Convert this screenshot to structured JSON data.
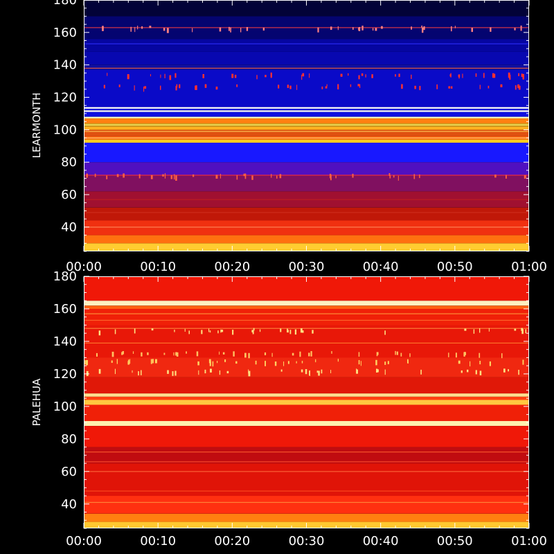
{
  "chart_data": [
    {
      "type": "heatmap",
      "title": "",
      "ylabel": "LEARMONTH",
      "xlabel": "",
      "xlim": [
        "00:00",
        "01:00"
      ],
      "ylim": [
        25,
        180
      ],
      "x_ticks": [
        "00:00",
        "00:10",
        "00:20",
        "00:30",
        "00:40",
        "00:50",
        "01:00"
      ],
      "y_ticks": [
        40,
        60,
        80,
        100,
        120,
        140,
        160,
        180
      ],
      "grid": false,
      "colormap": [
        "#000000",
        "#000080",
        "#0000ff",
        "#800000",
        "#ff0000",
        "#ffa000",
        "#ffff80",
        "#ffffff"
      ],
      "bands": [
        {
          "y0": 25,
          "y1": 30,
          "color": "#ffcc30"
        },
        {
          "y0": 30,
          "y1": 35,
          "color": "#ff7010"
        },
        {
          "y0": 35,
          "y1": 44,
          "color": "#f03010"
        },
        {
          "y0": 44,
          "y1": 52,
          "color": "#c01808"
        },
        {
          "y0": 52,
          "y1": 62,
          "color": "#a01030"
        },
        {
          "y0": 62,
          "y1": 72,
          "color": "#801060"
        },
        {
          "y0": 72,
          "y1": 80,
          "color": "#5010c0"
        },
        {
          "y0": 80,
          "y1": 92,
          "color": "#1818ff"
        },
        {
          "y0": 92,
          "y1": 94,
          "color": "#ffcc20"
        },
        {
          "y0": 94,
          "y1": 96,
          "color": "#ff6010"
        },
        {
          "y0": 96,
          "y1": 100,
          "color": "#e05010"
        },
        {
          "y0": 100,
          "y1": 102,
          "color": "#ffb020"
        },
        {
          "y0": 102,
          "y1": 104,
          "color": "#d0a020"
        },
        {
          "y0": 104,
          "y1": 107,
          "color": "#ff8010"
        },
        {
          "y0": 107,
          "y1": 108,
          "color": "#ffffc0"
        },
        {
          "y0": 108,
          "y1": 111,
          "color": "#1010e0"
        },
        {
          "y0": 111,
          "y1": 112,
          "color": "#ffffff"
        },
        {
          "y0": 112,
          "y1": 113,
          "color": "#1010e0"
        },
        {
          "y0": 113,
          "y1": 114,
          "color": "#ffffff"
        },
        {
          "y0": 114,
          "y1": 137,
          "color": "#0a0ac8"
        },
        {
          "y0": 137,
          "y1": 140,
          "color": "#1010a0"
        },
        {
          "y0": 140,
          "y1": 148,
          "color": "#0808b0"
        },
        {
          "y0": 148,
          "y1": 156,
          "color": "#0606a0"
        },
        {
          "y0": 156,
          "y1": 170,
          "color": "#040470"
        },
        {
          "y0": 170,
          "y1": 180,
          "color": "#020238"
        }
      ],
      "lines": [
        {
          "y": 40,
          "color": "#ff9060"
        },
        {
          "y": 49,
          "color": "#d03020"
        },
        {
          "y": 57,
          "color": "#c02020"
        },
        {
          "y": 72,
          "color": "#ff3030"
        },
        {
          "y": 95,
          "color": "#ffe080"
        },
        {
          "y": 99,
          "color": "#ffd060"
        },
        {
          "y": 103,
          "color": "#ffff80"
        },
        {
          "y": 138,
          "color": "#ff6030"
        },
        {
          "y": 153,
          "color": "#3030ff"
        },
        {
          "y": 163,
          "color": "#ff4040"
        }
      ],
      "speckle_rows": [
        {
          "y": 127,
          "color": "#ff3030"
        },
        {
          "y": 134,
          "color": "#ff3030"
        },
        {
          "y": 163,
          "color": "#ff8080"
        },
        {
          "y": 72,
          "color": "#ff6040"
        }
      ]
    },
    {
      "type": "heatmap",
      "title": "",
      "ylabel": "PALEHUA",
      "xlabel": "",
      "xlim": [
        "00:00",
        "01:00"
      ],
      "ylim": [
        25,
        180
      ],
      "x_ticks": [
        "00:00",
        "00:10",
        "00:20",
        "00:30",
        "00:40",
        "00:50",
        "01:00"
      ],
      "y_ticks": [
        40,
        60,
        80,
        100,
        120,
        140,
        160,
        180
      ],
      "grid": false,
      "colormap": [
        "#000000",
        "#000080",
        "#0000ff",
        "#800000",
        "#ff0000",
        "#ffa000",
        "#ffff80",
        "#ffffff"
      ],
      "bands": [
        {
          "y0": 25,
          "y1": 29,
          "color": "#ffc830"
        },
        {
          "y0": 29,
          "y1": 34,
          "color": "#ff8010"
        },
        {
          "y0": 34,
          "y1": 45,
          "color": "#ff3010"
        },
        {
          "y0": 45,
          "y1": 65,
          "color": "#e01408"
        },
        {
          "y0": 65,
          "y1": 75,
          "color": "#c00c10"
        },
        {
          "y0": 75,
          "y1": 88,
          "color": "#f01808"
        },
        {
          "y0": 88,
          "y1": 91,
          "color": "#fff0b0"
        },
        {
          "y0": 91,
          "y1": 101,
          "color": "#f02008"
        },
        {
          "y0": 101,
          "y1": 104,
          "color": "#ffc840"
        },
        {
          "y0": 104,
          "y1": 106,
          "color": "#ff4010"
        },
        {
          "y0": 106,
          "y1": 108,
          "color": "#ffe090"
        },
        {
          "y0": 108,
          "y1": 118,
          "color": "#e01808"
        },
        {
          "y0": 118,
          "y1": 130,
          "color": "#f02810"
        },
        {
          "y0": 130,
          "y1": 150,
          "color": "#e81808"
        },
        {
          "y0": 150,
          "y1": 160,
          "color": "#f02008"
        },
        {
          "y0": 160,
          "y1": 162,
          "color": "#ff6010"
        },
        {
          "y0": 162,
          "y1": 165,
          "color": "#fff0c0"
        },
        {
          "y0": 165,
          "y1": 180,
          "color": "#f01808"
        }
      ],
      "lines": [
        {
          "y": 41,
          "color": "#ff9040"
        },
        {
          "y": 48,
          "color": "#ff5020"
        },
        {
          "y": 60,
          "color": "#ff7040"
        },
        {
          "y": 66,
          "color": "#ff5030"
        },
        {
          "y": 72,
          "color": "#ff6030"
        },
        {
          "y": 139,
          "color": "#ff8030"
        },
        {
          "y": 148,
          "color": "#ff9040"
        },
        {
          "y": 153,
          "color": "#ff7030"
        },
        {
          "y": 157,
          "color": "#ffa040"
        }
      ],
      "speckle_rows": [
        {
          "y": 122,
          "color": "#ffe080"
        },
        {
          "y": 128,
          "color": "#ffd060"
        },
        {
          "y": 133,
          "color": "#ffc060"
        },
        {
          "y": 147,
          "color": "#ffe080"
        }
      ]
    }
  ]
}
